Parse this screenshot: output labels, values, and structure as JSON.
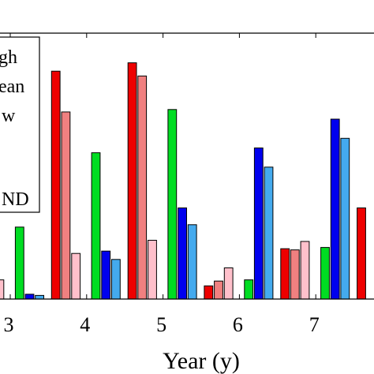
{
  "chart_data": {
    "type": "bar",
    "xlabel": "Year (y)",
    "ylabel": "",
    "title": "",
    "x_ticks": [
      "3",
      "4",
      "5",
      "6",
      "7"
    ],
    "legend": {
      "entries": [
        "gh",
        "ean",
        "w",
        "ND"
      ],
      "placement": "top-left"
    },
    "ylim": [
      0,
      100
    ],
    "grid": false,
    "groups": [
      {
        "x": 3,
        "values": [
          null,
          null,
          8,
          0,
          30,
          2,
          1.5
        ]
      },
      {
        "x": 4,
        "values": [
          95,
          78,
          19,
          0,
          61,
          20,
          16.5
        ]
      },
      {
        "x": 5,
        "values": [
          98.5,
          93,
          24.5,
          0,
          79,
          38,
          31
        ]
      },
      {
        "x": 6,
        "values": [
          5.5,
          7.5,
          13,
          0,
          8,
          63,
          55
        ]
      },
      {
        "x": 7,
        "values": [
          21,
          20.5,
          24,
          0,
          21.5,
          75,
          67
        ]
      },
      {
        "x": 8,
        "values": [
          38,
          null,
          null,
          null,
          null,
          null,
          null
        ]
      }
    ],
    "colors": [
      "#ee0000",
      "#f08080",
      "#ffc0cb",
      "#000000",
      "#00dd22",
      "#0000ee",
      "#44aaee"
    ],
    "xlim": [
      2.7,
      8.0
    ]
  }
}
